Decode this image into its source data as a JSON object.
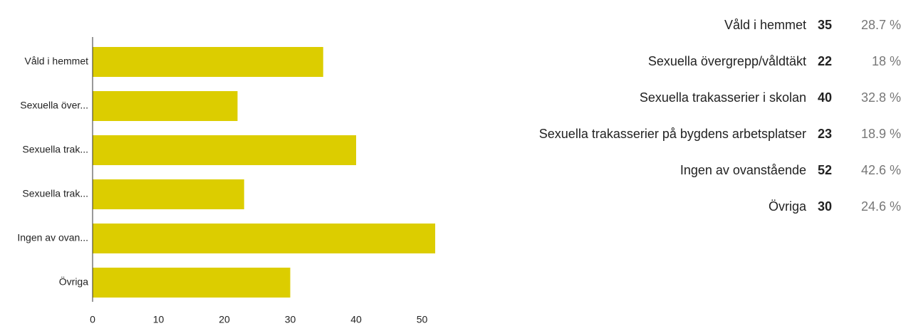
{
  "chart_data": {
    "type": "bar",
    "orientation": "horizontal",
    "categories": [
      "Våld i hemmet",
      "Sexuella över...",
      "Sexuella trak...",
      "Sexuella trak...",
      "Ingen av ovan...",
      "Övriga"
    ],
    "values": [
      35,
      22,
      40,
      23,
      52,
      30
    ],
    "color": "#dccd00",
    "xlim": [
      0,
      55
    ],
    "xticks": [
      0,
      10,
      20,
      30,
      40,
      50
    ]
  },
  "table": {
    "rows": [
      {
        "label": "Våld i hemmet",
        "percent": "28.7 %"
      },
      {
        "label": "Sexuella övergrepp/våldtäkt",
        "percent": "18 %"
      },
      {
        "label": "Sexuella trakasserier i skolan",
        "percent": "32.8 %"
      },
      {
        "label": "Sexuella trakasserier på bygdens arbetsplatser",
        "percent": "18.9 %"
      },
      {
        "label": "Ingen av ovanstående",
        "percent": "42.6 %"
      },
      {
        "label": "Övriga",
        "percent": "24.6 %"
      }
    ]
  }
}
